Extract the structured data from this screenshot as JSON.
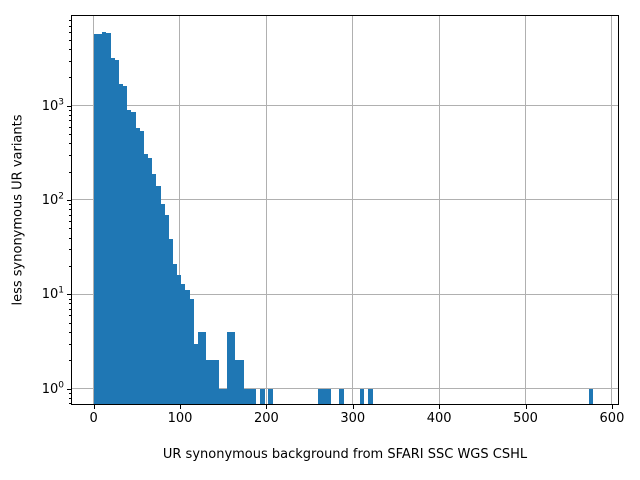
{
  "figure": {
    "background": "#ffffff"
  },
  "chart_data": {
    "type": "bar",
    "subtype": "histogram",
    "title": "",
    "xlabel": "UR synonymous background from SFARI SSC WGS CSHL",
    "ylabel": "less synonymous UR variants",
    "y_scale": "log",
    "grid": true,
    "legend": false,
    "bar_color": "#1f77b4",
    "grid_color": "#b0b0b0",
    "spine_color": "#000000",
    "xlim": [
      -25,
      607
    ],
    "ylim": [
      0.687,
      8920
    ],
    "x_ticks": [
      0,
      100,
      200,
      300,
      400,
      500,
      600
    ],
    "y_tick_exponents": [
      0,
      1,
      2,
      3
    ],
    "bin_width": 4.817,
    "bins": [
      {
        "x": 0.0,
        "count": 5700
      },
      {
        "x": 4.82,
        "count": 5750
      },
      {
        "x": 9.63,
        "count": 6000
      },
      {
        "x": 14.45,
        "count": 5900
      },
      {
        "x": 19.27,
        "count": 3200
      },
      {
        "x": 24.09,
        "count": 3050
      },
      {
        "x": 28.9,
        "count": 1700
      },
      {
        "x": 33.72,
        "count": 1600
      },
      {
        "x": 38.54,
        "count": 900
      },
      {
        "x": 43.35,
        "count": 860
      },
      {
        "x": 48.17,
        "count": 580
      },
      {
        "x": 52.99,
        "count": 545
      },
      {
        "x": 57.8,
        "count": 310
      },
      {
        "x": 62.62,
        "count": 280
      },
      {
        "x": 67.44,
        "count": 190
      },
      {
        "x": 72.26,
        "count": 140
      },
      {
        "x": 77.07,
        "count": 91
      },
      {
        "x": 81.89,
        "count": 70
      },
      {
        "x": 86.71,
        "count": 39
      },
      {
        "x": 91.52,
        "count": 21
      },
      {
        "x": 96.34,
        "count": 16
      },
      {
        "x": 101.16,
        "count": 13
      },
      {
        "x": 105.97,
        "count": 11
      },
      {
        "x": 110.79,
        "count": 9
      },
      {
        "x": 115.61,
        "count": 3
      },
      {
        "x": 120.43,
        "count": 4
      },
      {
        "x": 125.24,
        "count": 4
      },
      {
        "x": 130.06,
        "count": 2
      },
      {
        "x": 134.88,
        "count": 2
      },
      {
        "x": 139.69,
        "count": 2
      },
      {
        "x": 144.51,
        "count": 1
      },
      {
        "x": 149.33,
        "count": 1
      },
      {
        "x": 154.14,
        "count": 4
      },
      {
        "x": 158.96,
        "count": 4
      },
      {
        "x": 163.78,
        "count": 2
      },
      {
        "x": 168.6,
        "count": 2
      },
      {
        "x": 173.41,
        "count": 1
      },
      {
        "x": 178.23,
        "count": 1
      },
      {
        "x": 183.05,
        "count": 1
      },
      {
        "x": 192.68,
        "count": 1
      },
      {
        "x": 202.31,
        "count": 1
      },
      {
        "x": 260.12,
        "count": 1
      },
      {
        "x": 264.94,
        "count": 1
      },
      {
        "x": 269.75,
        "count": 1
      },
      {
        "x": 284.2,
        "count": 1
      },
      {
        "x": 308.29,
        "count": 1
      },
      {
        "x": 317.92,
        "count": 1
      },
      {
        "x": 573.22,
        "count": 1
      }
    ]
  }
}
